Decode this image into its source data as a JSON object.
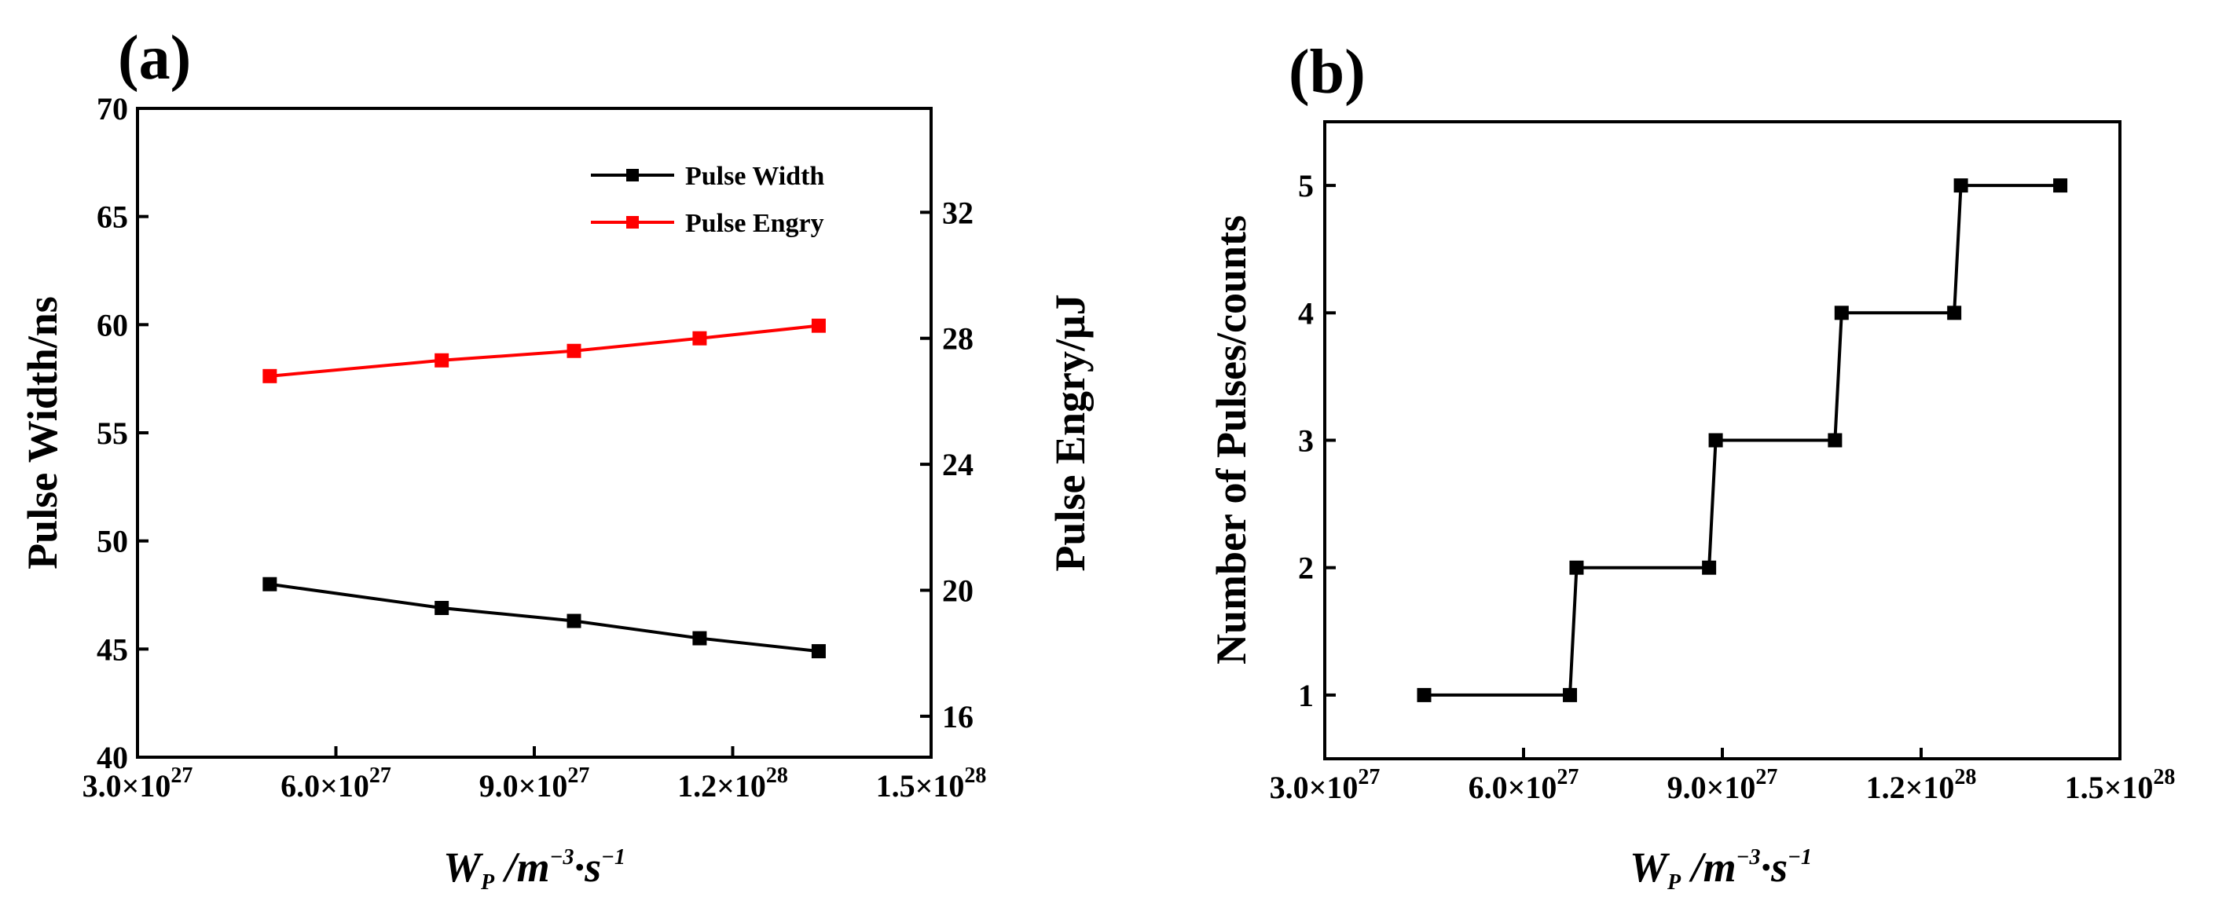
{
  "colors": {
    "pulse_width": "#000000",
    "pulse_energy": "#ff0000",
    "axes": "#000000",
    "background": "#ffffff"
  },
  "chart_data": [
    {
      "panel": "(a)",
      "type": "line",
      "x": [
        5e+27,
        7.6e+27,
        9.6e+27,
        1.15e+28,
        1.33e+28
      ],
      "x_tick_values": [
        3e+27,
        6e+27,
        9e+27,
        1.2e+28,
        1.5e+28
      ],
      "x_ticks": [
        {
          "mant": "3.0×10",
          "exp": "27"
        },
        {
          "mant": "6.0×10",
          "exp": "27"
        },
        {
          "mant": "9.0×10",
          "exp": "27"
        },
        {
          "mant": "1.2×10",
          "exp": "28"
        },
        {
          "mant": "1.5×10",
          "exp": "28"
        }
      ],
      "xlim": [
        3e+27,
        1.5e+28
      ],
      "xlabel": {
        "w": "W",
        "sub": "P",
        "mid": " /m",
        "sup1": "−3",
        "dot": "·s",
        "sup2": "−1"
      },
      "ylabel_left": "Pulse Width/ns",
      "ylabel_right": "Pulse Engry/μJ",
      "ylim_left": [
        40,
        70
      ],
      "ylim_right": [
        14.7,
        35.3
      ],
      "yticks_left": [
        "40",
        "45",
        "50",
        "55",
        "60",
        "65",
        "70"
      ],
      "yticks_right": [
        "16",
        "20",
        "24",
        "28",
        "32"
      ],
      "series": [
        {
          "name": "Pulse Width",
          "axis": "left",
          "values": [
            48.0,
            46.9,
            46.3,
            45.5,
            44.9
          ]
        },
        {
          "name": "Pulse Engry",
          "axis": "right",
          "values": [
            26.8,
            27.3,
            27.6,
            28.0,
            28.4
          ]
        }
      ],
      "legend": "top-right"
    },
    {
      "panel": "(b)",
      "type": "line",
      "x": [
        4.5e+27,
        6.7e+27,
        6.8e+27,
        8.8e+27,
        8.9e+27,
        1.07e+28,
        1.08e+28,
        1.25e+28,
        1.26e+28,
        1.41e+28
      ],
      "x_tick_values": [
        3e+27,
        6e+27,
        9e+27,
        1.2e+28,
        1.5e+28
      ],
      "x_ticks": [
        {
          "mant": "3.0×10",
          "exp": "27"
        },
        {
          "mant": "6.0×10",
          "exp": "27"
        },
        {
          "mant": "9.0×10",
          "exp": "27"
        },
        {
          "mant": "1.2×10",
          "exp": "28"
        },
        {
          "mant": "1.5×10",
          "exp": "28"
        }
      ],
      "xlim": [
        3e+27,
        1.5e+28
      ],
      "xlabel": {
        "w": "W",
        "sub": "P",
        "mid": " /m",
        "sup1": "−3",
        "dot": "·s",
        "sup2": "−1"
      },
      "ylabel": "Number of Pulses/counts",
      "ylim": [
        0.5,
        5.5
      ],
      "yticks": [
        "1",
        "2",
        "3",
        "4",
        "5"
      ],
      "series": [
        {
          "name": "Number of Pulses",
          "values": [
            1,
            1,
            2,
            2,
            3,
            3,
            4,
            4,
            5,
            5
          ]
        }
      ]
    }
  ]
}
